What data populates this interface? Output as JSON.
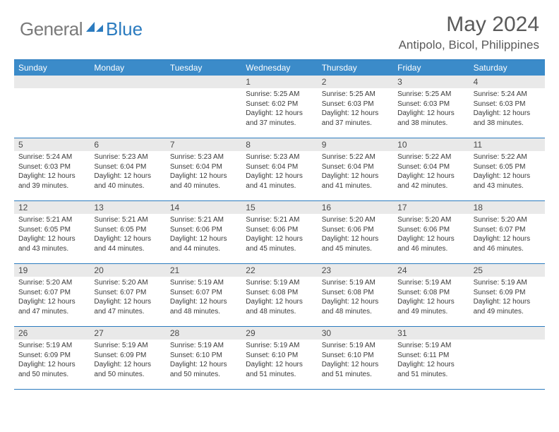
{
  "logo": {
    "word1": "General",
    "word2": "Blue"
  },
  "title": "May 2024",
  "location": "Antipolo, Bicol, Philippines",
  "colors": {
    "header_bar": "#3b8bc9",
    "rule": "#2b7bbf",
    "daynum_bg": "#e9e9e9",
    "text_gray": "#5a5a5a",
    "logo_gray": "#7a7a7a",
    "logo_blue": "#2b7bbf"
  },
  "fonts": {
    "title_size": 30,
    "location_size": 17,
    "weekday_size": 12,
    "daynum_size": 12,
    "body_size": 10
  },
  "weekdays": [
    "Sunday",
    "Monday",
    "Tuesday",
    "Wednesday",
    "Thursday",
    "Friday",
    "Saturday"
  ],
  "weeks": [
    [
      null,
      null,
      null,
      {
        "n": "1",
        "sr": "5:25 AM",
        "ss": "6:02 PM",
        "dl": "12 hours and 37 minutes."
      },
      {
        "n": "2",
        "sr": "5:25 AM",
        "ss": "6:03 PM",
        "dl": "12 hours and 37 minutes."
      },
      {
        "n": "3",
        "sr": "5:25 AM",
        "ss": "6:03 PM",
        "dl": "12 hours and 38 minutes."
      },
      {
        "n": "4",
        "sr": "5:24 AM",
        "ss": "6:03 PM",
        "dl": "12 hours and 38 minutes."
      }
    ],
    [
      {
        "n": "5",
        "sr": "5:24 AM",
        "ss": "6:03 PM",
        "dl": "12 hours and 39 minutes."
      },
      {
        "n": "6",
        "sr": "5:23 AM",
        "ss": "6:04 PM",
        "dl": "12 hours and 40 minutes."
      },
      {
        "n": "7",
        "sr": "5:23 AM",
        "ss": "6:04 PM",
        "dl": "12 hours and 40 minutes."
      },
      {
        "n": "8",
        "sr": "5:23 AM",
        "ss": "6:04 PM",
        "dl": "12 hours and 41 minutes."
      },
      {
        "n": "9",
        "sr": "5:22 AM",
        "ss": "6:04 PM",
        "dl": "12 hours and 41 minutes."
      },
      {
        "n": "10",
        "sr": "5:22 AM",
        "ss": "6:04 PM",
        "dl": "12 hours and 42 minutes."
      },
      {
        "n": "11",
        "sr": "5:22 AM",
        "ss": "6:05 PM",
        "dl": "12 hours and 43 minutes."
      }
    ],
    [
      {
        "n": "12",
        "sr": "5:21 AM",
        "ss": "6:05 PM",
        "dl": "12 hours and 43 minutes."
      },
      {
        "n": "13",
        "sr": "5:21 AM",
        "ss": "6:05 PM",
        "dl": "12 hours and 44 minutes."
      },
      {
        "n": "14",
        "sr": "5:21 AM",
        "ss": "6:06 PM",
        "dl": "12 hours and 44 minutes."
      },
      {
        "n": "15",
        "sr": "5:21 AM",
        "ss": "6:06 PM",
        "dl": "12 hours and 45 minutes."
      },
      {
        "n": "16",
        "sr": "5:20 AM",
        "ss": "6:06 PM",
        "dl": "12 hours and 45 minutes."
      },
      {
        "n": "17",
        "sr": "5:20 AM",
        "ss": "6:06 PM",
        "dl": "12 hours and 46 minutes."
      },
      {
        "n": "18",
        "sr": "5:20 AM",
        "ss": "6:07 PM",
        "dl": "12 hours and 46 minutes."
      }
    ],
    [
      {
        "n": "19",
        "sr": "5:20 AM",
        "ss": "6:07 PM",
        "dl": "12 hours and 47 minutes."
      },
      {
        "n": "20",
        "sr": "5:20 AM",
        "ss": "6:07 PM",
        "dl": "12 hours and 47 minutes."
      },
      {
        "n": "21",
        "sr": "5:19 AM",
        "ss": "6:07 PM",
        "dl": "12 hours and 48 minutes."
      },
      {
        "n": "22",
        "sr": "5:19 AM",
        "ss": "6:08 PM",
        "dl": "12 hours and 48 minutes."
      },
      {
        "n": "23",
        "sr": "5:19 AM",
        "ss": "6:08 PM",
        "dl": "12 hours and 48 minutes."
      },
      {
        "n": "24",
        "sr": "5:19 AM",
        "ss": "6:08 PM",
        "dl": "12 hours and 49 minutes."
      },
      {
        "n": "25",
        "sr": "5:19 AM",
        "ss": "6:09 PM",
        "dl": "12 hours and 49 minutes."
      }
    ],
    [
      {
        "n": "26",
        "sr": "5:19 AM",
        "ss": "6:09 PM",
        "dl": "12 hours and 50 minutes."
      },
      {
        "n": "27",
        "sr": "5:19 AM",
        "ss": "6:09 PM",
        "dl": "12 hours and 50 minutes."
      },
      {
        "n": "28",
        "sr": "5:19 AM",
        "ss": "6:10 PM",
        "dl": "12 hours and 50 minutes."
      },
      {
        "n": "29",
        "sr": "5:19 AM",
        "ss": "6:10 PM",
        "dl": "12 hours and 51 minutes."
      },
      {
        "n": "30",
        "sr": "5:19 AM",
        "ss": "6:10 PM",
        "dl": "12 hours and 51 minutes."
      },
      {
        "n": "31",
        "sr": "5:19 AM",
        "ss": "6:11 PM",
        "dl": "12 hours and 51 minutes."
      },
      null
    ]
  ],
  "labels": {
    "sunrise": "Sunrise:",
    "sunset": "Sunset:",
    "daylight": "Daylight:"
  }
}
